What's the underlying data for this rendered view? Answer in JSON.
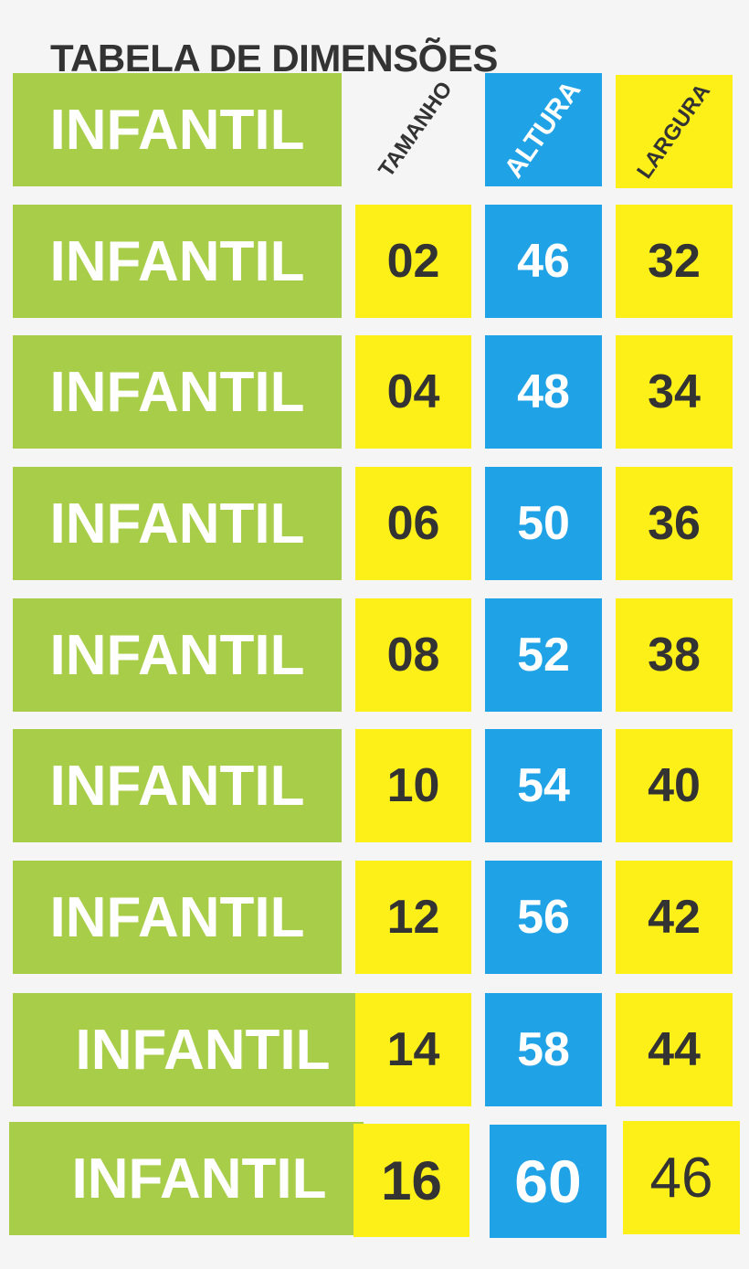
{
  "title": "TABELA DE DIMENSÕES",
  "header": {
    "category": "INFANTIL",
    "size": "TAMANHO",
    "height": "ALTURA",
    "width": "LARGURA"
  },
  "colors": {
    "green": "#a8cd48",
    "yellow": "#fdef18",
    "blue": "#1fa2e6",
    "text_dark": "#333333"
  },
  "rows": [
    {
      "category": "INFANTIL",
      "size": "02",
      "height": "46",
      "width": "32"
    },
    {
      "category": "INFANTIL",
      "size": "04",
      "height": "48",
      "width": "34"
    },
    {
      "category": "INFANTIL",
      "size": "06",
      "height": "50",
      "width": "36"
    },
    {
      "category": "INFANTIL",
      "size": "08",
      "height": "52",
      "width": "38"
    },
    {
      "category": "INFANTIL",
      "size": "10",
      "height": "54",
      "width": "40"
    },
    {
      "category": "INFANTIL",
      "size": "12",
      "height": "56",
      "width": "42"
    },
    {
      "category": "INFANTIL",
      "size": "14",
      "height": "58",
      "width": "44"
    },
    {
      "category": "INFANTIL",
      "size": "16",
      "height": "60",
      "width": "46"
    }
  ]
}
